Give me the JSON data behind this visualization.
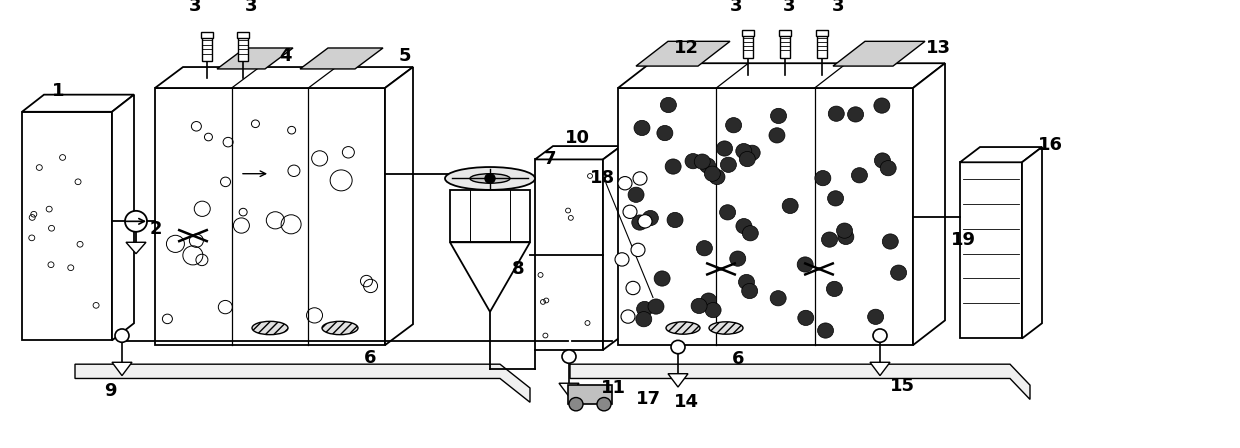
{
  "fig_width": 12.4,
  "fig_height": 4.48,
  "dpi": 100,
  "bg_color": "#ffffff",
  "line_color": "#000000",
  "label_fontsize": 11,
  "label_fontweight": "bold"
}
